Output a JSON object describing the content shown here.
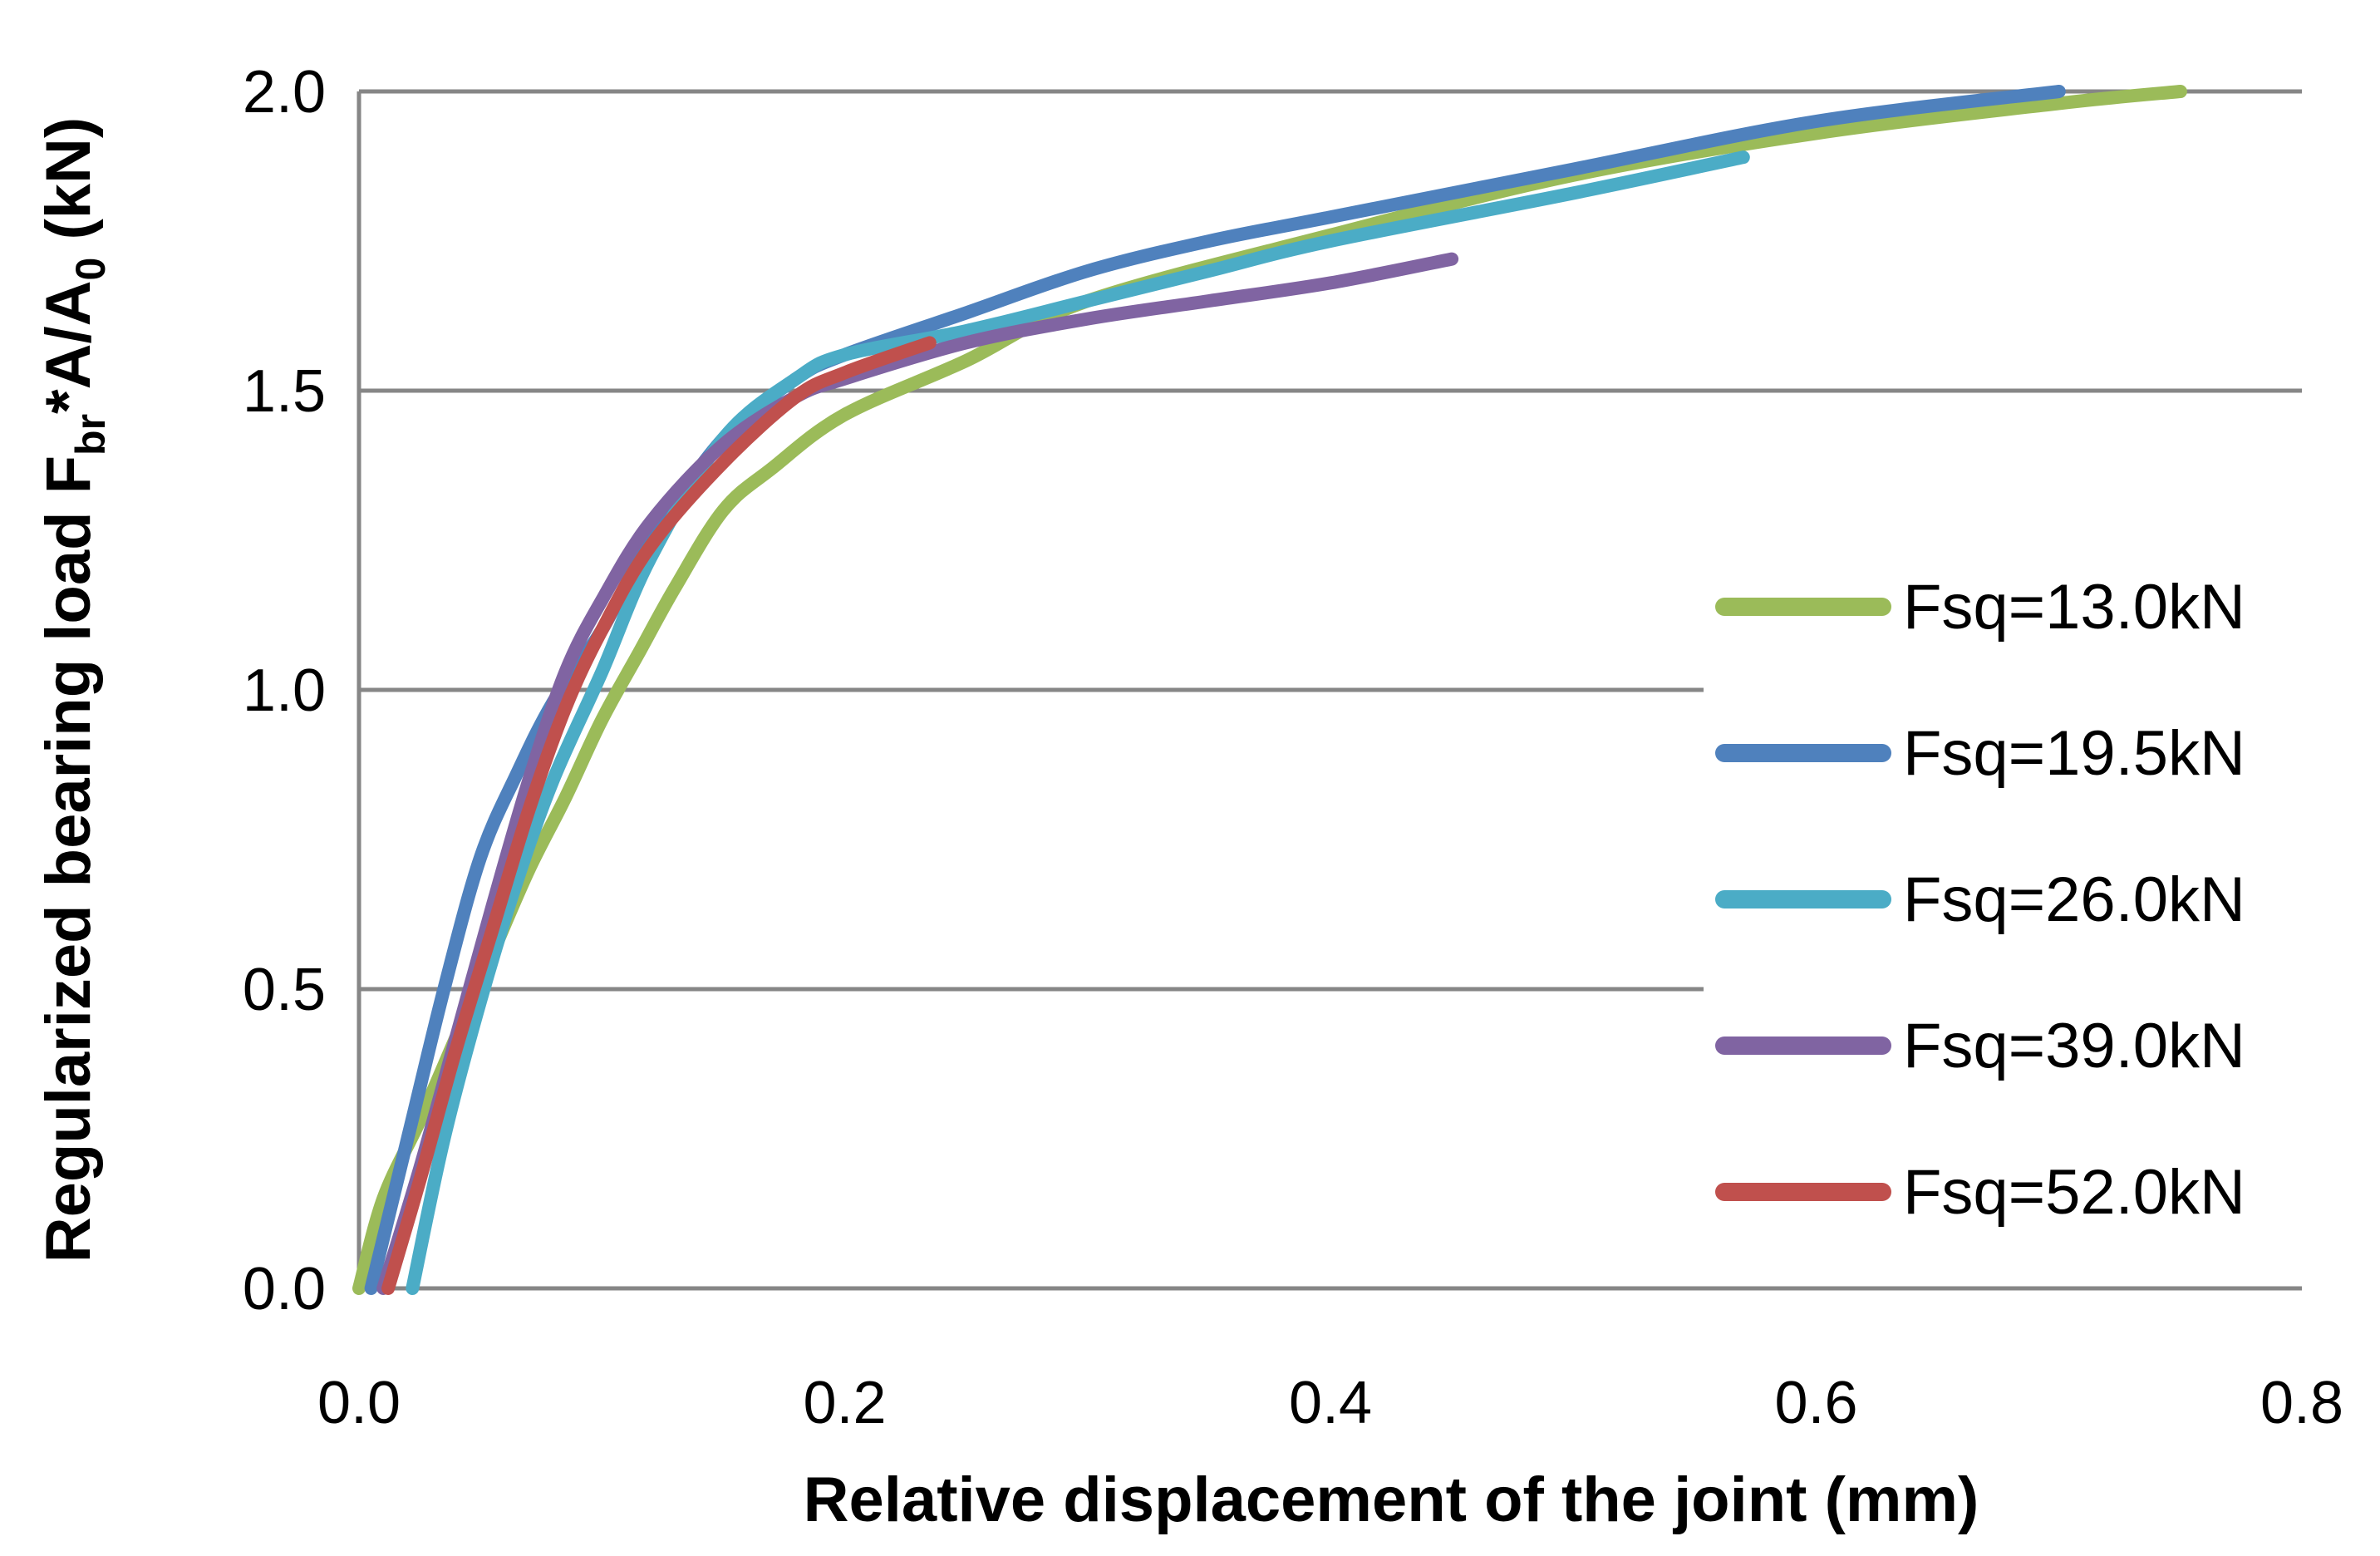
{
  "chart_data": {
    "type": "line",
    "title": "",
    "xlabel": "Relative displacement of the joint (mm)",
    "ylabel": {
      "text": "Regularized bearing load F",
      "sub1": "br",
      "mid": "*A/A",
      "sub2": "0",
      "tail": " (kN)"
    },
    "xlim": [
      0,
      0.8
    ],
    "ylim": [
      0,
      2.0
    ],
    "xticks": [
      0,
      0.2,
      0.4,
      0.6,
      0.8
    ],
    "yticks": [
      0,
      0.5,
      1.0,
      1.5,
      2.0
    ],
    "xtick_labels": [
      "0.0",
      "0.2",
      "0.4",
      "0.6",
      "0.8"
    ],
    "ytick_labels": [
      "0.0",
      "0.5",
      "1.0",
      "1.5",
      "2.0"
    ],
    "grid": "horizontal",
    "legend_position": "right",
    "series": [
      {
        "name": "Fsq=13.0kN",
        "color": "#9BBB59",
        "x": [
          0.0,
          0.01,
          0.025,
          0.04,
          0.055,
          0.07,
          0.085,
          0.1,
          0.115,
          0.13,
          0.15,
          0.17,
          0.2,
          0.25,
          0.3,
          0.4,
          0.5,
          0.6,
          0.7,
          0.75
        ],
        "y": [
          0.0,
          0.15,
          0.28,
          0.42,
          0.56,
          0.7,
          0.82,
          0.95,
          1.06,
          1.17,
          1.3,
          1.37,
          1.46,
          1.55,
          1.65,
          1.76,
          1.86,
          1.93,
          1.98,
          2.0
        ]
      },
      {
        "name": "Fsq=19.5kN",
        "color": "#4F81BD",
        "x": [
          0.005,
          0.02,
          0.035,
          0.05,
          0.065,
          0.08,
          0.1,
          0.12,
          0.15,
          0.18,
          0.2,
          0.25,
          0.3,
          0.35,
          0.4,
          0.5,
          0.6,
          0.7
        ],
        "y": [
          0.0,
          0.25,
          0.5,
          0.72,
          0.86,
          0.98,
          1.1,
          1.25,
          1.42,
          1.52,
          1.56,
          1.63,
          1.7,
          1.75,
          1.79,
          1.87,
          1.95,
          2.0
        ]
      },
      {
        "name": "Fsq=26.0kN",
        "color": "#4BACC6",
        "x": [
          0.022,
          0.035,
          0.05,
          0.065,
          0.08,
          0.1,
          0.12,
          0.15,
          0.18,
          0.2,
          0.25,
          0.3,
          0.35,
          0.4,
          0.5,
          0.57
        ],
        "y": [
          0.0,
          0.25,
          0.48,
          0.68,
          0.85,
          1.03,
          1.22,
          1.42,
          1.52,
          1.56,
          1.6,
          1.65,
          1.7,
          1.75,
          1.83,
          1.89
        ]
      },
      {
        "name": "Fsq=39.0kN",
        "color": "#8064A2",
        "x": [
          0.01,
          0.025,
          0.04,
          0.055,
          0.07,
          0.085,
          0.1,
          0.12,
          0.15,
          0.18,
          0.2,
          0.25,
          0.3,
          0.35,
          0.4,
          0.45
        ],
        "y": [
          0.0,
          0.2,
          0.42,
          0.64,
          0.85,
          1.03,
          1.15,
          1.28,
          1.41,
          1.49,
          1.52,
          1.58,
          1.62,
          1.65,
          1.68,
          1.72
        ]
      },
      {
        "name": "Fsq=52.0kN",
        "color": "#C0504D",
        "x": [
          0.012,
          0.025,
          0.04,
          0.055,
          0.07,
          0.085,
          0.1,
          0.12,
          0.15,
          0.18,
          0.2,
          0.235
        ],
        "y": [
          0.0,
          0.18,
          0.4,
          0.6,
          0.8,
          0.97,
          1.1,
          1.24,
          1.38,
          1.49,
          1.53,
          1.58
        ]
      }
    ]
  }
}
